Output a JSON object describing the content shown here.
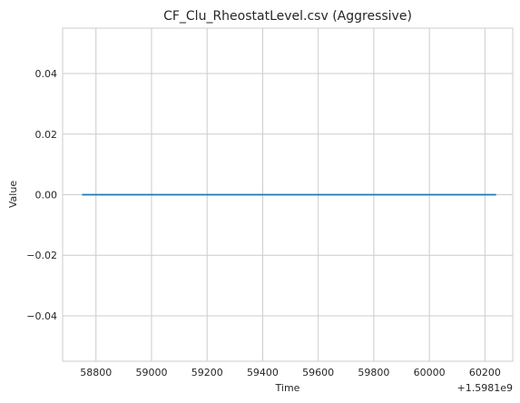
{
  "chart_data": {
    "type": "line",
    "title": "CF_Clu_RheostatLevel.csv (Aggressive)",
    "xlabel": "Time",
    "ylabel": "Value",
    "x_offset_label": "+1.5981e9",
    "x_ticks": [
      58800,
      59000,
      59200,
      59400,
      59600,
      59800,
      60000,
      60200
    ],
    "x_tick_labels": [
      "58800",
      "59000",
      "59200",
      "59400",
      "59600",
      "59800",
      "60000",
      "60200"
    ],
    "y_ticks": [
      -0.04,
      -0.02,
      0.0,
      0.02,
      0.04
    ],
    "y_tick_labels": [
      "−0.04",
      "−0.02",
      "0.00",
      "0.02",
      "0.04"
    ],
    "xlim": [
      58680,
      60300
    ],
    "ylim": [
      -0.055,
      0.055
    ],
    "grid": true,
    "series": [
      {
        "color": "#1f77b4",
        "x": [
          58750,
          60240
        ],
        "y": [
          0,
          0
        ]
      }
    ]
  }
}
